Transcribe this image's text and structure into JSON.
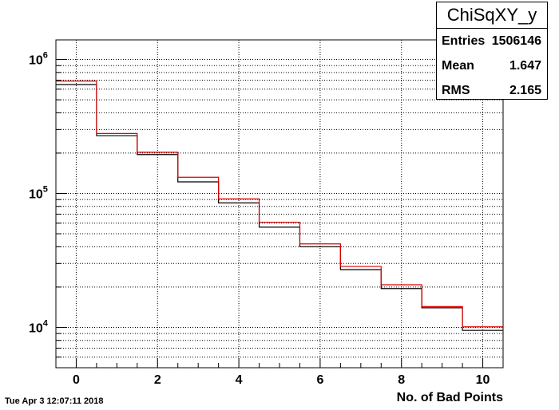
{
  "chart_data": {
    "type": "histogram",
    "title": "ChiSqXY_y",
    "xlabel": "No. of Bad Points",
    "ylabel": "",
    "x_ticks": [
      0,
      2,
      4,
      6,
      8,
      10
    ],
    "y_tick_labels": [
      {
        "base": "10",
        "exp": "4",
        "value": 10000
      },
      {
        "base": "10",
        "exp": "5",
        "value": 100000
      },
      {
        "base": "10",
        "exp": "6",
        "value": 1000000
      }
    ],
    "xlim": [
      -0.5,
      10.5
    ],
    "ylim": [
      5000,
      1400000
    ],
    "y_scale": "log",
    "grid": true,
    "bins": [
      0,
      1,
      2,
      3,
      4,
      5,
      6,
      7,
      8,
      9,
      10
    ],
    "series": [
      {
        "color": "#000000",
        "values": [
          650000,
          270000,
          195000,
          122000,
          85000,
          56000,
          40000,
          27000,
          19500,
          14000,
          9500
        ]
      },
      {
        "color": "#e00000",
        "values": [
          690000,
          280000,
          203000,
          132000,
          91000,
          61000,
          42000,
          28500,
          20800,
          14300,
          10100
        ]
      }
    ]
  },
  "stats": {
    "title": "ChiSqXY_y",
    "entries_label": "Entries",
    "entries_value": "1506146",
    "mean_label": "Mean",
    "mean_value": "1.647",
    "rms_label": "RMS",
    "rms_value": "2.165"
  },
  "timestamp": "Tue Apr  3 12:07:11 2018"
}
